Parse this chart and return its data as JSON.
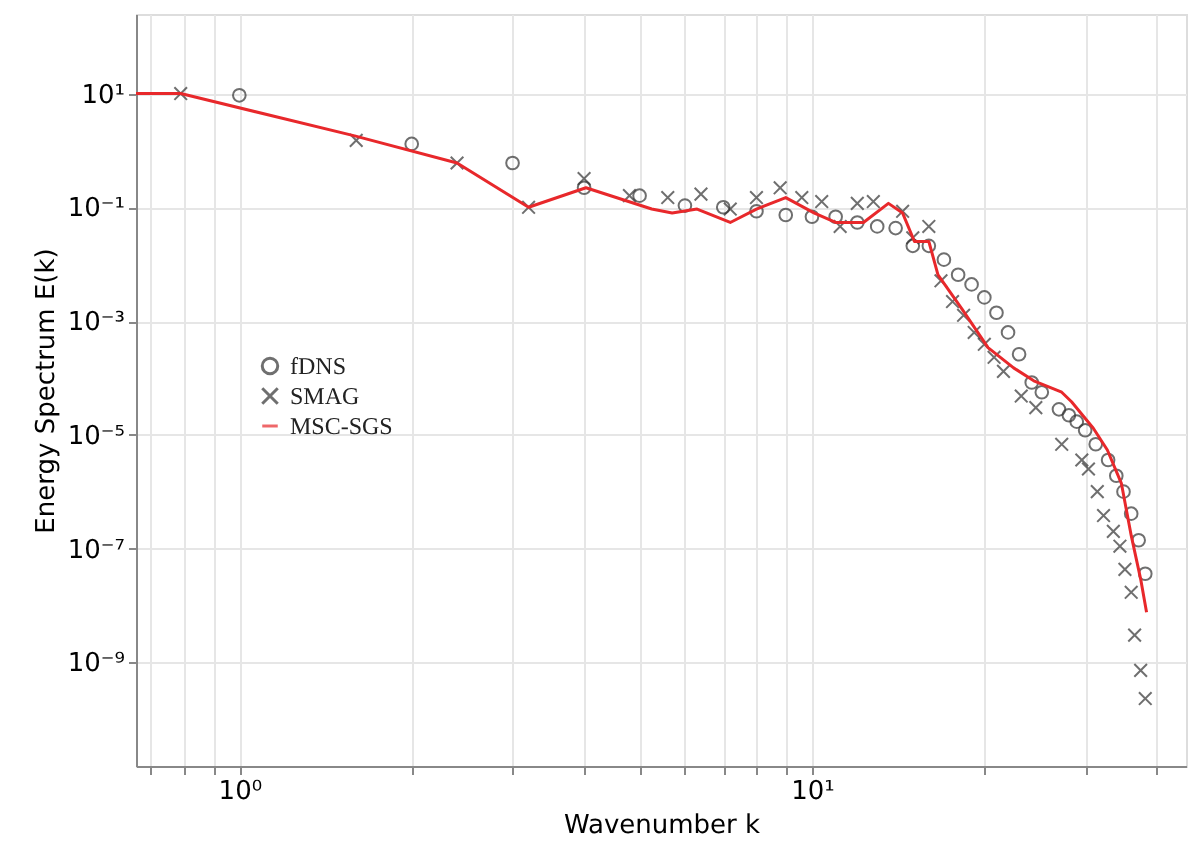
{
  "chart_data": {
    "type": "scatter",
    "xlabel": "Wavenumber k",
    "ylabel": "Energy Spectrum E(k)",
    "log": "xy",
    "grid": true,
    "legend": "center left",
    "xlim": [
      0.66,
      45
    ],
    "ylim": [
      1.5e-11,
      250
    ],
    "xticks": [
      {
        "value": 0.7,
        "label": null
      },
      {
        "value": 0.8,
        "label": null
      },
      {
        "value": 0.9,
        "label": null
      },
      {
        "value": 1,
        "label": "10⁰"
      },
      {
        "value": 2,
        "label": null
      },
      {
        "value": 3,
        "label": null
      },
      {
        "value": 4,
        "label": null
      },
      {
        "value": 5,
        "label": null
      },
      {
        "value": 6,
        "label": null
      },
      {
        "value": 7,
        "label": null
      },
      {
        "value": 8,
        "label": null
      },
      {
        "value": 9,
        "label": null
      },
      {
        "value": 10,
        "label": "10¹"
      },
      {
        "value": 20,
        "label": null
      },
      {
        "value": 30,
        "label": null
      },
      {
        "value": 40,
        "label": null
      }
    ],
    "yticks": [
      {
        "value": 10,
        "label": "10¹"
      },
      {
        "value": 0.1,
        "label": "10⁻¹"
      },
      {
        "value": 0.001,
        "label": "10⁻³"
      },
      {
        "value": 1e-05,
        "label": "10⁻⁵"
      },
      {
        "value": 1e-07,
        "label": "10⁻⁷"
      },
      {
        "value": 1e-09,
        "label": "10⁻⁹"
      }
    ],
    "series": [
      {
        "name": "fDNS",
        "marker": "circle",
        "color": "#333333",
        "x": [
          1,
          2,
          3,
          4,
          5,
          6,
          7,
          8,
          9,
          10,
          11,
          12,
          13,
          14,
          15,
          16,
          17,
          18,
          19,
          20,
          21,
          22,
          23,
          24.2,
          25.2,
          27,
          28.1,
          29,
          30,
          31.3,
          32.9,
          34,
          35,
          36.1,
          37.2,
          38.2
        ],
        "values": [
          9.3,
          1.3,
          0.6,
          0.22,
          0.16,
          0.107,
          0.1,
          0.085,
          0.073,
          0.068,
          0.068,
          0.054,
          0.046,
          0.043,
          0.021,
          0.021,
          0.012,
          0.0065,
          0.0044,
          0.0026,
          0.0014,
          0.00063,
          0.00026,
          8.3e-05,
          5.6e-05,
          2.8e-05,
          2.2e-05,
          1.7e-05,
          1.2e-05,
          6.8e-06,
          3.6e-06,
          1.9e-06,
          1e-06,
          4.1e-07,
          1.4e-07,
          3.6e-08
        ]
      },
      {
        "name": "SMAG",
        "marker": "cross",
        "color": "#333333",
        "x": [
          0.79,
          1.6,
          2.4,
          3.2,
          4.0,
          4.8,
          5.6,
          6.4,
          7.2,
          8.0,
          8.8,
          9.6,
          10.4,
          11.2,
          12.0,
          12.8,
          14.4,
          15.0,
          16.0,
          16.8,
          17.6,
          18.4,
          19.2,
          20.0,
          20.8,
          21.6,
          23.2,
          24.6,
          27.3,
          29.6,
          30.4,
          31.5,
          32.3,
          33.6,
          34.5,
          35.2,
          36.1,
          36.6,
          37.5,
          38.2
        ],
        "values": [
          10,
          1.5,
          0.6,
          0.1,
          0.32,
          0.16,
          0.148,
          0.17,
          0.093,
          0.148,
          0.22,
          0.148,
          0.126,
          0.046,
          0.117,
          0.126,
          0.085,
          0.029,
          0.046,
          0.0051,
          0.0022,
          0.00126,
          0.00063,
          0.00039,
          0.00023,
          0.00013,
          4.8e-05,
          3e-05,
          6.8e-06,
          3.6e-06,
          2.5e-06,
          1e-06,
          3.8e-07,
          2e-07,
          1.1e-07,
          4.3e-08,
          1.7e-08,
          3e-09,
          7.2e-10,
          2.3e-10
        ]
      },
      {
        "name": "MSC-SGS",
        "type": "line",
        "marker": "none",
        "color": "#e8282b",
        "x": [
          0.66,
          0.79,
          1.59,
          2.4,
          3.2,
          4.03,
          5.25,
          5.7,
          6.3,
          7.2,
          8.0,
          9.0,
          10.1,
          11.0,
          12.3,
          13.6,
          14.4,
          15.1,
          16.0,
          16.6,
          18.3,
          20.3,
          22.5,
          24.4,
          27.3,
          28.4,
          31.0,
          32.8,
          34.7,
          36.1,
          37.5,
          38.4
        ],
        "values": [
          10,
          10,
          1.8,
          0.6,
          0.1,
          0.22,
          0.093,
          0.079,
          0.093,
          0.054,
          0.093,
          0.148,
          0.079,
          0.054,
          0.054,
          0.117,
          0.079,
          0.025,
          0.025,
          0.0065,
          0.0016,
          0.00034,
          0.00015,
          8.9e-05,
          5.6e-05,
          3.8e-05,
          1.3e-05,
          5.4e-06,
          1.4e-06,
          1.7e-07,
          2.9e-08,
          7.6e-09
        ]
      }
    ]
  }
}
